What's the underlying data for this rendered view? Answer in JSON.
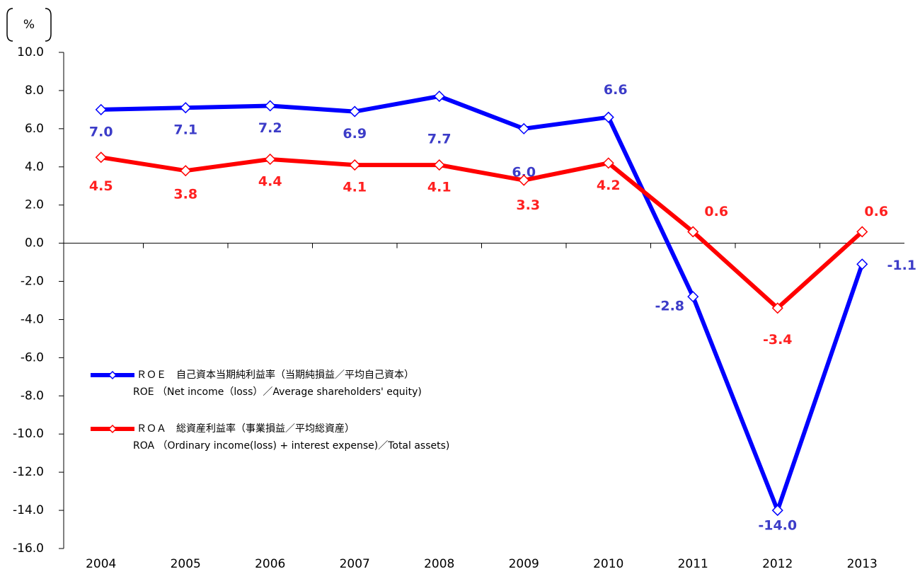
{
  "chart_data": {
    "type": "line",
    "unit": "%",
    "categories": [
      "2004",
      "2005",
      "2006",
      "2007",
      "2008",
      "2009",
      "2010",
      "2011",
      "2012",
      "2013"
    ],
    "ylim": [
      -16,
      10
    ],
    "yticks": [
      {
        "value": 10,
        "label": "10.0"
      },
      {
        "value": 8,
        "label": "8.0"
      },
      {
        "value": 6,
        "label": "6.0"
      },
      {
        "value": 4,
        "label": "4.0"
      },
      {
        "value": 2,
        "label": "2.0"
      },
      {
        "value": 0,
        "label": "0.0"
      },
      {
        "value": -2,
        "label": "-2.0"
      },
      {
        "value": -4,
        "label": "-4.0"
      },
      {
        "value": -6,
        "label": "-6.0"
      },
      {
        "value": -8,
        "label": "-8.0"
      },
      {
        "value": -10,
        "label": "-10.0"
      },
      {
        "value": -12,
        "label": "-12.0"
      },
      {
        "value": -14,
        "label": "-14.0"
      },
      {
        "value": -16,
        "label": "-16.0"
      }
    ],
    "series": [
      {
        "name": "ＲＯＥ　自己資本当期純利益率（当期純損益／平均自己資本）",
        "description": "ROE （Net income（loss）／Average shareholders' equity)",
        "color": "#0000ff",
        "label_color": "#3c3cc8",
        "values": [
          7.0,
          7.1,
          7.2,
          6.9,
          7.7,
          6.0,
          6.6,
          -2.8,
          -14.0,
          -1.1
        ],
        "value_labels": [
          "7.0",
          "7.1",
          "7.2",
          "6.9",
          "7.7",
          "6.0",
          "6.6",
          "-2.8",
          "-14.0",
          "-1.1"
        ]
      },
      {
        "name": "ＲＯＡ　総資産利益率（事業損益／平均総資産）",
        "description": "ROA （Ordinary income(loss) + interest expense)／Total assets)",
        "color": "#ff0000",
        "label_color": "#ff2020",
        "values": [
          4.5,
          3.8,
          4.4,
          4.1,
          4.1,
          3.3,
          4.2,
          0.6,
          -3.4,
          0.6
        ],
        "value_labels": [
          "4.5",
          "3.8",
          "4.4",
          "4.1",
          "4.1",
          "3.3",
          "4.2",
          "0.6",
          "-3.4",
          "0.6"
        ]
      }
    ]
  }
}
